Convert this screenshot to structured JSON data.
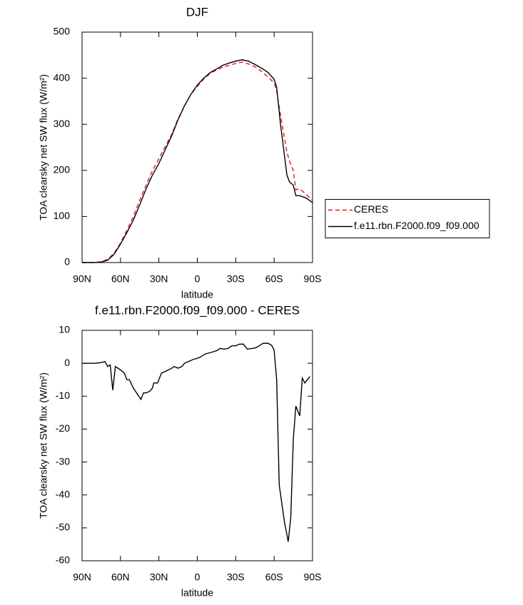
{
  "chart_data": [
    {
      "type": "line",
      "title": "DJF",
      "xlabel": "latitude",
      "ylabel": "TOA clearsky net SW flux (W/m²)",
      "x": [
        90,
        80,
        75,
        70,
        65,
        60,
        55,
        50,
        45,
        40,
        35,
        30,
        25,
        20,
        15,
        10,
        5,
        0,
        -5,
        -10,
        -15,
        -20,
        -25,
        -30,
        -35,
        -40,
        -45,
        -50,
        -55,
        -60,
        -62,
        -65,
        -70,
        -72,
        -75,
        -77,
        -80,
        -85,
        -90
      ],
      "series": [
        {
          "name": "CERES",
          "color": "#e8141c",
          "dash": true,
          "values": [
            0,
            0,
            2,
            7,
            20,
            42,
            70,
            100,
            135,
            168,
            200,
            225,
            252,
            278,
            312,
            340,
            365,
            382,
            398,
            410,
            418,
            424,
            428,
            432,
            435,
            431,
            425,
            415,
            403,
            390,
            372,
            320,
            240,
            220,
            200,
            158,
            160,
            148,
            135
          ]
        },
        {
          "name": "f.e11.rbn.F2000.f09_f09.000",
          "color": "#000000",
          "dash": false,
          "values": [
            0,
            0,
            1,
            5,
            18,
            40,
            65,
            92,
            125,
            160,
            190,
            215,
            245,
            275,
            310,
            340,
            365,
            385,
            400,
            412,
            420,
            428,
            433,
            437,
            440,
            437,
            430,
            422,
            413,
            398,
            380,
            300,
            190,
            175,
            168,
            145,
            145,
            140,
            130
          ]
        }
      ],
      "xlim": [
        90,
        -90
      ],
      "xticks": [
        {
          "value": 90,
          "label": "90N"
        },
        {
          "value": 60,
          "label": "60N"
        },
        {
          "value": 30,
          "label": "30N"
        },
        0,
        {
          "value": -30,
          "label": "30S"
        },
        {
          "value": -60,
          "label": "60S"
        },
        {
          "value": -90,
          "label": "90S"
        }
      ],
      "ylim": [
        0,
        500
      ],
      "yticks": [
        0,
        100,
        200,
        300,
        400,
        500
      ],
      "legend": "right"
    },
    {
      "type": "line",
      "title": "f.e11.rbn.F2000.f09_f09.000 - CERES",
      "xlabel": "latitude",
      "ylabel": "TOA clearsky net SW flux (W/m²)",
      "x": [
        90,
        80,
        75,
        72,
        70,
        68,
        66,
        64,
        60,
        57,
        55,
        53,
        50,
        44,
        42,
        40,
        37,
        35,
        34,
        31,
        28,
        25,
        20,
        18,
        15,
        12,
        10,
        7,
        3,
        0,
        -3,
        -6,
        -10,
        -15,
        -18,
        -21,
        -24,
        -27,
        -30,
        -33,
        -36,
        -39,
        -45,
        -48,
        -51,
        -55,
        -58,
        -60,
        -62,
        -64,
        -68,
        -71,
        -73,
        -75,
        -77,
        -80,
        -82,
        -84,
        -88
      ],
      "values": [
        0,
        0,
        0.2,
        0.5,
        -1,
        -0.5,
        -8.2,
        -1,
        -2,
        -3,
        -5,
        -5,
        -7.5,
        -11,
        -9,
        -9,
        -8.5,
        -7.5,
        -6,
        -6,
        -3,
        -2.5,
        -1.5,
        -1,
        -1.5,
        -1,
        0,
        0.5,
        1.2,
        1.5,
        2,
        2.8,
        3.2,
        3.8,
        4.5,
        4.3,
        4.5,
        5.3,
        5.3,
        5.8,
        5.8,
        4.3,
        4.6,
        5.2,
        6,
        6.1,
        5.5,
        4,
        -5,
        -37,
        -48,
        -54.2,
        -47,
        -23,
        -13,
        -16,
        -4.5,
        -6,
        -4
      ],
      "color": "#000000",
      "xlim": [
        90,
        -90
      ],
      "xticks": [
        {
          "value": 90,
          "label": "90N"
        },
        {
          "value": 60,
          "label": "60N"
        },
        {
          "value": 30,
          "label": "30N"
        },
        0,
        {
          "value": -30,
          "label": "30S"
        },
        {
          "value": -60,
          "label": "60S"
        },
        {
          "value": -90,
          "label": "90S"
        }
      ],
      "ylim": [
        -60,
        10
      ],
      "yticks": [
        -60,
        -50,
        -40,
        -30,
        -20,
        -10,
        0,
        10
      ]
    }
  ]
}
